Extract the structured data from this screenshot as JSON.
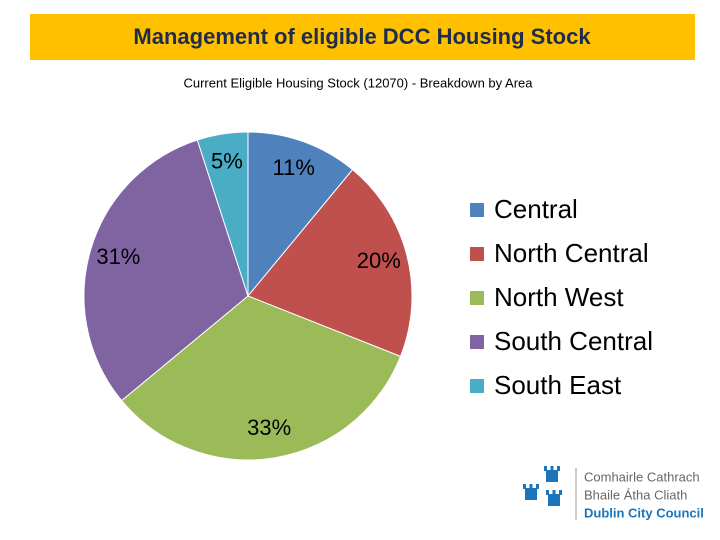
{
  "header": {
    "title": "Management of eligible DCC Housing Stock"
  },
  "logo": {
    "lines": [
      "Comhairle Cathrach",
      "Bhaile Átha Cliath",
      "Dublin City Council"
    ]
  },
  "chart_data": {
    "type": "pie",
    "title": "Current Eligible Housing Stock (12070) - Breakdown by Area",
    "categories": [
      "Central",
      "North Central",
      "North West",
      "South Central",
      "South East"
    ],
    "values": [
      11,
      20,
      33,
      31,
      5
    ],
    "value_labels": [
      "11%",
      "20%",
      "33%",
      "31%",
      "5%"
    ],
    "colors": [
      "#4F81BD",
      "#C0504D",
      "#9BBB59",
      "#8064A2",
      "#4BACC6"
    ],
    "legend": "right"
  }
}
